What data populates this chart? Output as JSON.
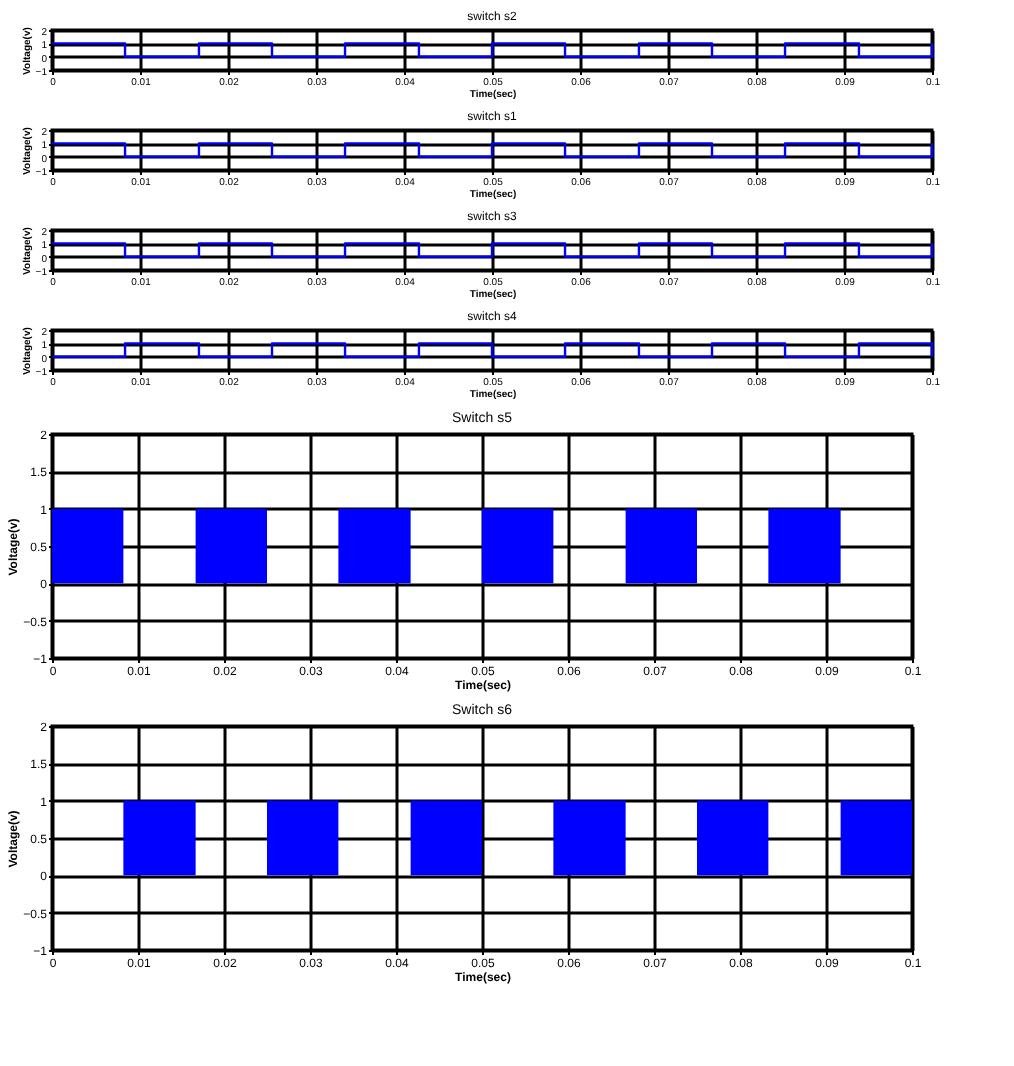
{
  "chart_data": [
    {
      "type": "step",
      "title": "switch s2",
      "xlabel": "Time(sec)",
      "ylabel": "Voltage(v)",
      "x": [
        0,
        0.0083,
        0.0167,
        0.025,
        0.0333,
        0.0417,
        0.05,
        0.0583,
        0.0667,
        0.075,
        0.0833,
        0.0917,
        0.1
      ],
      "series": [
        {
          "color": "#0000ff",
          "values": [
            1,
            0,
            1,
            0,
            1,
            0,
            1,
            0,
            1,
            0,
            1,
            0,
            1
          ]
        }
      ],
      "xlim": [
        0,
        0.1
      ],
      "xticks": [
        0,
        0.01,
        0.02,
        0.03,
        0.04,
        0.05,
        0.06,
        0.07,
        0.08,
        0.09,
        0.1
      ],
      "ylim": [
        -1,
        2
      ],
      "yticks": [
        -1,
        0,
        1,
        2
      ],
      "grid": true
    },
    {
      "type": "step",
      "title": "switch s1",
      "xlabel": "Time(sec)",
      "ylabel": "Voltage(v)",
      "x": [
        0,
        0.0083,
        0.0167,
        0.025,
        0.0333,
        0.0417,
        0.05,
        0.0583,
        0.0667,
        0.075,
        0.0833,
        0.0917,
        0.1
      ],
      "series": [
        {
          "color": "#0000ff",
          "values": [
            1,
            0,
            1,
            0,
            1,
            0,
            1,
            0,
            1,
            0,
            1,
            0,
            1
          ]
        }
      ],
      "xlim": [
        0,
        0.1
      ],
      "xticks": [
        0,
        0.01,
        0.02,
        0.03,
        0.04,
        0.05,
        0.06,
        0.07,
        0.08,
        0.09,
        0.1
      ],
      "ylim": [
        -1,
        2
      ],
      "yticks": [
        -1,
        0,
        1,
        2
      ],
      "grid": true
    },
    {
      "type": "step",
      "title": "switch s3",
      "xlabel": "Time(sec)",
      "ylabel": "Voltage(v)",
      "x": [
        0,
        0.0083,
        0.0167,
        0.025,
        0.0333,
        0.0417,
        0.05,
        0.0583,
        0.0667,
        0.075,
        0.0833,
        0.0917,
        0.1
      ],
      "series": [
        {
          "color": "#0000ff",
          "values": [
            1,
            0,
            1,
            0,
            1,
            0,
            1,
            0,
            1,
            0,
            1,
            0,
            1
          ]
        }
      ],
      "xlim": [
        0,
        0.1
      ],
      "xticks": [
        0,
        0.01,
        0.02,
        0.03,
        0.04,
        0.05,
        0.06,
        0.07,
        0.08,
        0.09,
        0.1
      ],
      "ylim": [
        -1,
        2
      ],
      "yticks": [
        -1,
        0,
        1,
        2
      ],
      "grid": true
    },
    {
      "type": "step",
      "title": "switch s4",
      "xlabel": "Time(sec)",
      "ylabel": "Voltage(v)",
      "x": [
        0,
        0.0083,
        0.0167,
        0.025,
        0.0333,
        0.0417,
        0.05,
        0.0583,
        0.0667,
        0.075,
        0.0833,
        0.0917,
        0.1
      ],
      "series": [
        {
          "color": "#0000ff",
          "values": [
            0,
            1,
            0,
            1,
            0,
            1,
            0,
            1,
            0,
            1,
            0,
            1,
            0
          ]
        }
      ],
      "xlim": [
        0,
        0.1
      ],
      "xticks": [
        0,
        0.01,
        0.02,
        0.03,
        0.04,
        0.05,
        0.06,
        0.07,
        0.08,
        0.09,
        0.1
      ],
      "ylim": [
        -1,
        2
      ],
      "yticks": [
        -1,
        0,
        1,
        2
      ],
      "grid": true
    },
    {
      "type": "area",
      "title": "Switch s5",
      "xlabel": "Time(sec)",
      "ylabel": "Voltage(v)",
      "x": [
        0,
        0.0083,
        0.0167,
        0.025,
        0.0333,
        0.0417,
        0.05,
        0.0583,
        0.0667,
        0.075,
        0.0833,
        0.0917,
        0.1
      ],
      "series": [
        {
          "color": "#0000ff",
          "values": [
            1,
            0,
            1,
            0,
            1,
            0,
            1,
            0,
            1,
            0,
            1,
            0,
            0
          ]
        }
      ],
      "xlim": [
        0,
        0.1
      ],
      "xticks": [
        0,
        0.01,
        0.02,
        0.03,
        0.04,
        0.05,
        0.06,
        0.07,
        0.08,
        0.09,
        0.1
      ],
      "ylim": [
        -1,
        2
      ],
      "yticks": [
        -1,
        -0.5,
        0,
        0.5,
        1,
        1.5,
        2
      ],
      "grid": true
    },
    {
      "type": "area",
      "title": "Switch s6",
      "xlabel": "Time(sec)",
      "ylabel": "Voltage(v)",
      "x": [
        0,
        0.0083,
        0.0167,
        0.025,
        0.0333,
        0.0417,
        0.05,
        0.0583,
        0.0667,
        0.075,
        0.0833,
        0.0917,
        0.1
      ],
      "series": [
        {
          "color": "#0000ff",
          "values": [
            0,
            1,
            0,
            1,
            0,
            1,
            0,
            1,
            0,
            1,
            0,
            1,
            1
          ]
        }
      ],
      "xlim": [
        0,
        0.1
      ],
      "xticks": [
        0,
        0.01,
        0.02,
        0.03,
        0.04,
        0.05,
        0.06,
        0.07,
        0.08,
        0.09,
        0.1
      ],
      "ylim": [
        -1,
        2
      ],
      "yticks": [
        -1,
        -0.5,
        0,
        0.5,
        1,
        1.5,
        2
      ],
      "grid": true
    }
  ]
}
